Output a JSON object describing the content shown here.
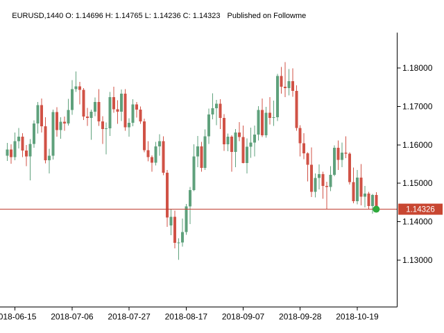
{
  "header": {
    "symbol_line": "EURUSD,1440 O: 1.14696 H: 1.14765 L: 1.14236 C: 1.14323",
    "watermark": "Published on Followme"
  },
  "chart_data": {
    "type": "candlestick",
    "symbol": "EURUSD",
    "timeframe": "1440",
    "last_bar": {
      "open": 1.14696,
      "high": 1.14765,
      "low": 1.14236,
      "close": 1.14323
    },
    "current_price": 1.14326,
    "price_label": "1.14326",
    "ylim": [
      1.1179,
      1.1878
    ],
    "grid": false,
    "y_ticks": [
      "1.18000",
      "1.17000",
      "1.16000",
      "1.15000",
      "1.14000",
      "1.13000"
    ],
    "x_ticks": [
      {
        "i": 2,
        "label": "2018-06-15"
      },
      {
        "i": 17,
        "label": "2018-07-06"
      },
      {
        "i": 32,
        "label": "2018-07-27"
      },
      {
        "i": 47,
        "label": "2018-08-17"
      },
      {
        "i": 62,
        "label": "2018-09-07"
      },
      {
        "i": 77,
        "label": "2018-09-28"
      },
      {
        "i": 92,
        "label": "2018-10-19"
      }
    ],
    "colors": {
      "up": "#5fa17c",
      "down": "#d05246",
      "price_line": "#bf3b2f",
      "price_label_bg": "#c84631",
      "marker": "#2faa3c",
      "axis": "#000000",
      "text": "#000000",
      "background": "#ffffff"
    },
    "candles": [
      [
        "2018-06-13",
        1.1572,
        1.1605,
        1.1558,
        1.1588
      ],
      [
        "2018-06-14",
        1.1588,
        1.1601,
        1.1551,
        1.1568
      ],
      [
        "2018-06-15",
        1.1568,
        1.1632,
        1.156,
        1.161
      ],
      [
        "2018-06-18",
        1.161,
        1.1644,
        1.1591,
        1.1621
      ],
      [
        "2018-06-19",
        1.1621,
        1.163,
        1.1568,
        1.1585
      ],
      [
        "2018-06-20",
        1.1585,
        1.16,
        1.1545,
        1.157
      ],
      [
        "2018-06-21",
        1.157,
        1.1615,
        1.1508,
        1.1602
      ],
      [
        "2018-06-22",
        1.1602,
        1.1664,
        1.1592,
        1.1656
      ],
      [
        "2018-06-25",
        1.1656,
        1.1712,
        1.1629,
        1.1703
      ],
      [
        "2018-06-26",
        1.1703,
        1.1721,
        1.1632,
        1.1648
      ],
      [
        "2018-06-27",
        1.1648,
        1.1672,
        1.1552,
        1.156
      ],
      [
        "2018-06-28",
        1.156,
        1.159,
        1.1526,
        1.1572
      ],
      [
        "2018-06-29",
        1.1572,
        1.1692,
        1.1562,
        1.1685
      ],
      [
        "2018-07-02",
        1.1685,
        1.1698,
        1.1621,
        1.1638
      ],
      [
        "2018-07-03",
        1.1638,
        1.1672,
        1.1616,
        1.166
      ],
      [
        "2018-07-04",
        1.166,
        1.1674,
        1.1637,
        1.1656
      ],
      [
        "2018-07-05",
        1.1656,
        1.172,
        1.165,
        1.1691
      ],
      [
        "2018-07-06",
        1.1691,
        1.1768,
        1.1678,
        1.1745
      ],
      [
        "2018-07-09",
        1.1745,
        1.1791,
        1.1738,
        1.1752
      ],
      [
        "2018-07-10",
        1.1752,
        1.1764,
        1.1705,
        1.1743
      ],
      [
        "2018-07-11",
        1.1743,
        1.1748,
        1.1665,
        1.1674
      ],
      [
        "2018-07-12",
        1.1674,
        1.1696,
        1.1649,
        1.167
      ],
      [
        "2018-07-13",
        1.167,
        1.1692,
        1.1613,
        1.1686
      ],
      [
        "2018-07-16",
        1.1686,
        1.1723,
        1.1675,
        1.1712
      ],
      [
        "2018-07-17",
        1.1712,
        1.1745,
        1.1649,
        1.1661
      ],
      [
        "2018-07-18",
        1.1661,
        1.1675,
        1.1602,
        1.1641
      ],
      [
        "2018-07-19",
        1.1641,
        1.1658,
        1.1575,
        1.1643
      ],
      [
        "2018-07-20",
        1.1643,
        1.1738,
        1.1623,
        1.1724
      ],
      [
        "2018-07-23",
        1.1724,
        1.1751,
        1.1684,
        1.1693
      ],
      [
        "2018-07-24",
        1.1693,
        1.1716,
        1.1655,
        1.1686
      ],
      [
        "2018-07-25",
        1.1686,
        1.1744,
        1.1662,
        1.1733
      ],
      [
        "2018-07-26",
        1.1733,
        1.1745,
        1.1637,
        1.1646
      ],
      [
        "2018-07-27",
        1.1646,
        1.1669,
        1.1621,
        1.1657
      ],
      [
        "2018-07-30",
        1.1657,
        1.1719,
        1.1648,
        1.1705
      ],
      [
        "2018-07-31",
        1.1705,
        1.1712,
        1.1671,
        1.1692
      ],
      [
        "2018-08-01",
        1.1692,
        1.17,
        1.1655,
        1.1661
      ],
      [
        "2018-08-02",
        1.1661,
        1.1668,
        1.1581,
        1.1586
      ],
      [
        "2018-08-03",
        1.1586,
        1.161,
        1.1557,
        1.1568
      ],
      [
        "2018-08-06",
        1.1568,
        1.1573,
        1.153,
        1.1554
      ],
      [
        "2018-08-07",
        1.1554,
        1.1608,
        1.1546,
        1.1596
      ],
      [
        "2018-08-08",
        1.1596,
        1.1628,
        1.1572,
        1.161
      ],
      [
        "2018-08-09",
        1.161,
        1.1622,
        1.1521,
        1.1527
      ],
      [
        "2018-08-10",
        1.1527,
        1.1535,
        1.1387,
        1.1411
      ],
      [
        "2018-08-13",
        1.139,
        1.1432,
        1.1365,
        1.1413
      ],
      [
        "2018-08-14",
        1.1413,
        1.1429,
        1.1331,
        1.1345
      ],
      [
        "2018-08-15",
        1.1345,
        1.1357,
        1.1301,
        1.1346
      ],
      [
        "2018-08-16",
        1.1346,
        1.1408,
        1.1335,
        1.1373
      ],
      [
        "2018-08-17",
        1.1373,
        1.1446,
        1.1366,
        1.144
      ],
      [
        "2018-08-20",
        1.144,
        1.149,
        1.1394,
        1.1482
      ],
      [
        "2018-08-21",
        1.1482,
        1.1601,
        1.148,
        1.157
      ],
      [
        "2018-08-22",
        1.157,
        1.1623,
        1.1542,
        1.1596
      ],
      [
        "2018-08-23",
        1.1596,
        1.1608,
        1.153,
        1.154
      ],
      [
        "2018-08-24",
        1.154,
        1.164,
        1.1535,
        1.1622
      ],
      [
        "2018-08-27",
        1.1622,
        1.1694,
        1.1602,
        1.1679
      ],
      [
        "2018-08-28",
        1.1679,
        1.1734,
        1.1666,
        1.1695
      ],
      [
        "2018-08-29",
        1.1695,
        1.1717,
        1.1651,
        1.1707
      ],
      [
        "2018-08-30",
        1.1707,
        1.1719,
        1.1641,
        1.167
      ],
      [
        "2018-08-31",
        1.167,
        1.168,
        1.1584,
        1.1601
      ],
      [
        "2018-09-03",
        1.1601,
        1.1629,
        1.1583,
        1.1621
      ],
      [
        "2018-09-04",
        1.1621,
        1.1625,
        1.153,
        1.1582
      ],
      [
        "2018-09-05",
        1.1582,
        1.1641,
        1.1542,
        1.1632
      ],
      [
        "2018-09-06",
        1.1632,
        1.1659,
        1.161,
        1.162
      ],
      [
        "2018-09-07",
        1.162,
        1.165,
        1.1552,
        1.1553
      ],
      [
        "2018-09-10",
        1.1553,
        1.1617,
        1.1526,
        1.1595
      ],
      [
        "2018-09-11",
        1.1595,
        1.1645,
        1.1566,
        1.1606
      ],
      [
        "2018-09-12",
        1.1606,
        1.165,
        1.157,
        1.1627
      ],
      [
        "2018-09-13",
        1.1627,
        1.1701,
        1.1611,
        1.1691
      ],
      [
        "2018-09-14",
        1.1691,
        1.1721,
        1.162,
        1.1625
      ],
      [
        "2018-09-17",
        1.1625,
        1.1699,
        1.1619,
        1.1684
      ],
      [
        "2018-09-18",
        1.1684,
        1.1724,
        1.1653,
        1.167
      ],
      [
        "2018-09-19",
        1.167,
        1.1715,
        1.1649,
        1.1672
      ],
      [
        "2018-09-20",
        1.1672,
        1.1785,
        1.1662,
        1.1779
      ],
      [
        "2018-09-21",
        1.1779,
        1.1803,
        1.1733,
        1.1751
      ],
      [
        "2018-09-24",
        1.1751,
        1.1815,
        1.1724,
        1.1748
      ],
      [
        "2018-09-25",
        1.1748,
        1.1797,
        1.1729,
        1.1766
      ],
      [
        "2018-09-26",
        1.1766,
        1.1799,
        1.1725,
        1.174
      ],
      [
        "2018-09-27",
        1.174,
        1.1755,
        1.1637,
        1.1644
      ],
      [
        "2018-09-28",
        1.1644,
        1.1651,
        1.157,
        1.1604
      ],
      [
        "2018-10-01",
        1.1604,
        1.163,
        1.1563,
        1.1578
      ],
      [
        "2018-10-02",
        1.1578,
        1.1581,
        1.1505,
        1.1548
      ],
      [
        "2018-10-03",
        1.1548,
        1.1593,
        1.1464,
        1.1478
      ],
      [
        "2018-10-04",
        1.1478,
        1.1526,
        1.1463,
        1.1514
      ],
      [
        "2018-10-05",
        1.1514,
        1.1549,
        1.1484,
        1.1524
      ],
      [
        "2018-10-08",
        1.1524,
        1.153,
        1.146,
        1.1493
      ],
      [
        "2018-10-09",
        1.1493,
        1.1504,
        1.1432,
        1.149
      ],
      [
        "2018-10-10",
        1.149,
        1.1545,
        1.148,
        1.1522
      ],
      [
        "2018-10-11",
        1.1522,
        1.1599,
        1.1518,
        1.1592
      ],
      [
        "2018-10-12",
        1.1592,
        1.1611,
        1.1535,
        1.1561
      ],
      [
        "2018-10-15",
        1.1561,
        1.1606,
        1.1542,
        1.158
      ],
      [
        "2018-10-16",
        1.158,
        1.1622,
        1.1565,
        1.1577
      ],
      [
        "2018-10-17",
        1.1577,
        1.1581,
        1.1497,
        1.1503
      ],
      [
        "2018-10-18",
        1.1503,
        1.1541,
        1.1448,
        1.1453
      ],
      [
        "2018-10-19",
        1.1453,
        1.1535,
        1.1445,
        1.1515
      ],
      [
        "2018-10-22",
        1.1515,
        1.155,
        1.1443,
        1.1465
      ],
      [
        "2018-10-23",
        1.1465,
        1.1493,
        1.1437,
        1.1473
      ],
      [
        "2018-10-24",
        1.1473,
        1.1478,
        1.1432,
        1.1441
      ],
      [
        "2018-10-25",
        1.1441,
        1.1472,
        1.1421,
        1.147
      ],
      [
        "2018-10-26",
        1.14696,
        1.14765,
        1.14236,
        1.14323
      ]
    ]
  }
}
